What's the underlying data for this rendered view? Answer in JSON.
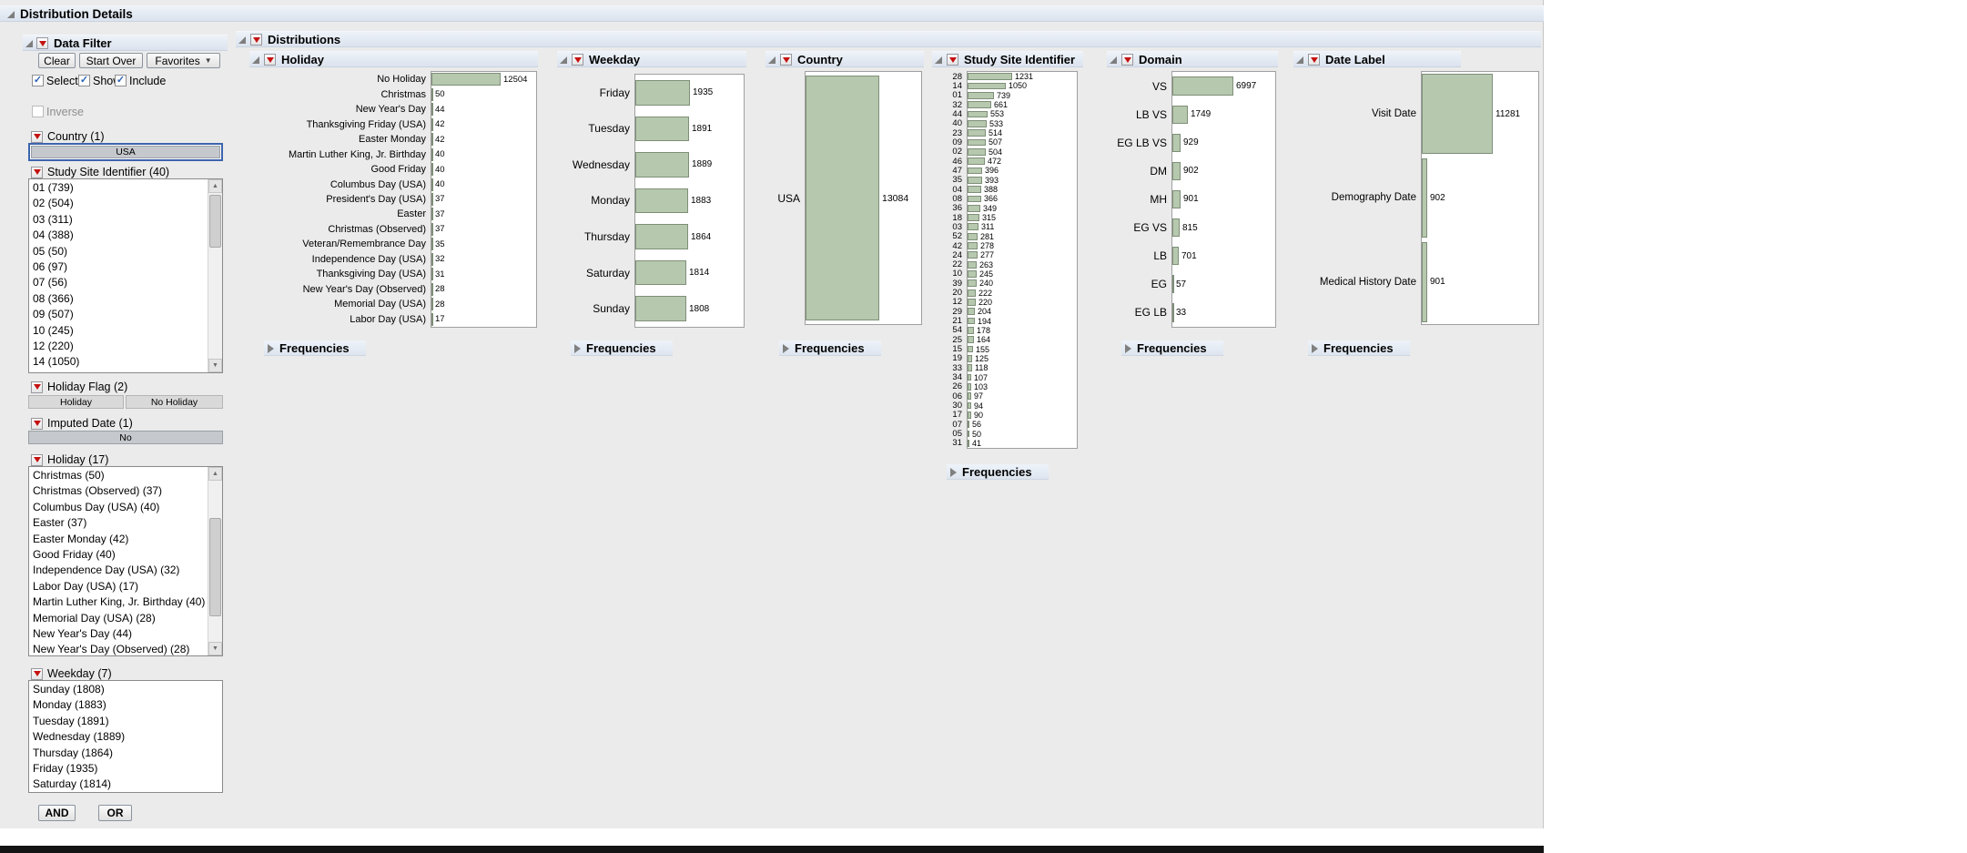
{
  "window_title": "Distribution Details",
  "data_filter": {
    "title": "Data Filter",
    "toolbar": {
      "clear": "Clear",
      "start_over": "Start Over",
      "favorites": "Favorites"
    },
    "checkboxes": {
      "select": "Select",
      "show": "Show",
      "include": "Include",
      "inverse": "Inverse"
    },
    "fields": {
      "country": {
        "label": "Country (1)",
        "selected_value": "USA"
      },
      "study_site": {
        "label": "Study Site Identifier (40)",
        "items": [
          "01 (739)",
          "02 (504)",
          "03 (311)",
          "04 (388)",
          "05 (50)",
          "06 (97)",
          "07 (56)",
          "08 (366)",
          "09 (507)",
          "10 (245)",
          "12 (220)",
          "14 (1050)"
        ]
      },
      "holiday_flag": {
        "label": "Holiday Flag (2)",
        "options": [
          "Holiday",
          "No Holiday"
        ]
      },
      "imputed_date": {
        "label": "Imputed Date (1)",
        "selected_value": "No"
      },
      "holiday": {
        "label": "Holiday (17)",
        "items": [
          "Christmas (50)",
          "Christmas (Observed) (37)",
          "Columbus Day (USA) (40)",
          "Easter (37)",
          "Easter Monday (42)",
          "Good Friday (40)",
          "Independence Day (USA) (32)",
          "Labor Day (USA) (17)",
          "Martin Luther King, Jr. Birthday (40)",
          "Memorial Day (USA) (28)",
          "New Year's Day (44)",
          "New Year's Day (Observed) (28)"
        ]
      },
      "weekday": {
        "label": "Weekday (7)",
        "items": [
          "Sunday (1808)",
          "Monday (1883)",
          "Tuesday (1891)",
          "Wednesday (1889)",
          "Thursday (1864)",
          "Friday (1935)",
          "Saturday (1814)"
        ]
      }
    },
    "and_label": "AND",
    "or_label": "OR"
  },
  "distributions": {
    "title": "Distributions",
    "frequencies_label": "Frequencies"
  },
  "chart_data": [
    {
      "id": "holiday",
      "type": "bar",
      "orientation": "horizontal",
      "title": "Holiday",
      "categories": [
        "No Holiday",
        "Christmas",
        "New Year's Day",
        "Thanksgiving Friday (USA)",
        "Easter Monday",
        "Martin Luther King, Jr. Birthday",
        "Good Friday",
        "Columbus Day (USA)",
        "President's Day (USA)",
        "Easter",
        "Christmas (Observed)",
        "Veteran/Remembrance Day",
        "Independence Day (USA)",
        "Thanksgiving Day (USA)",
        "New Year's Day (Observed)",
        "Memorial Day (USA)",
        "Labor Day (USA)"
      ],
      "values": [
        12504,
        50,
        44,
        42,
        42,
        40,
        40,
        40,
        37,
        37,
        37,
        35,
        32,
        31,
        28,
        28,
        17
      ]
    },
    {
      "id": "weekday",
      "type": "bar",
      "orientation": "horizontal",
      "title": "Weekday",
      "categories": [
        "Friday",
        "Tuesday",
        "Wednesday",
        "Monday",
        "Thursday",
        "Saturday",
        "Sunday"
      ],
      "values": [
        1935,
        1891,
        1889,
        1883,
        1864,
        1814,
        1808
      ]
    },
    {
      "id": "country",
      "type": "bar",
      "orientation": "horizontal",
      "title": "Country",
      "categories": [
        "USA"
      ],
      "values": [
        13084
      ]
    },
    {
      "id": "study_site",
      "type": "bar",
      "orientation": "horizontal",
      "title": "Study Site Identifier",
      "categories": [
        "28",
        "14",
        "01",
        "32",
        "44",
        "40",
        "23",
        "09",
        "02",
        "46",
        "47",
        "35",
        "04",
        "08",
        "36",
        "18",
        "03",
        "52",
        "42",
        "24",
        "22",
        "10",
        "39",
        "20",
        "12",
        "29",
        "21",
        "54",
        "25",
        "15",
        "19",
        "33",
        "34",
        "26",
        "06",
        "30",
        "17",
        "07",
        "05",
        "31"
      ],
      "values": [
        1231,
        1050,
        739,
        661,
        553,
        533,
        514,
        507,
        504,
        472,
        396,
        393,
        388,
        366,
        349,
        315,
        311,
        281,
        278,
        277,
        263,
        245,
        240,
        222,
        220,
        204,
        194,
        178,
        164,
        155,
        125,
        118,
        107,
        103,
        97,
        94,
        90,
        56,
        50,
        41
      ]
    },
    {
      "id": "domain",
      "type": "bar",
      "orientation": "horizontal",
      "title": "Domain",
      "categories": [
        "VS",
        "LB VS",
        "EG LB VS",
        "DM",
        "MH",
        "EG VS",
        "LB",
        "EG",
        "EG LB"
      ],
      "values": [
        6997,
        1749,
        929,
        902,
        901,
        815,
        701,
        57,
        33
      ]
    },
    {
      "id": "date_label",
      "type": "bar",
      "orientation": "horizontal",
      "title": "Date Label",
      "categories": [
        "Visit Date",
        "Demography Date",
        "Medical History Date"
      ],
      "values": [
        11281,
        902,
        901
      ]
    }
  ],
  "colors": {
    "bar_fill": "#b6c8ae",
    "bar_border": "#7e8f78",
    "header_band": "#dde6f1",
    "selected_block": "#c5c8cc"
  }
}
